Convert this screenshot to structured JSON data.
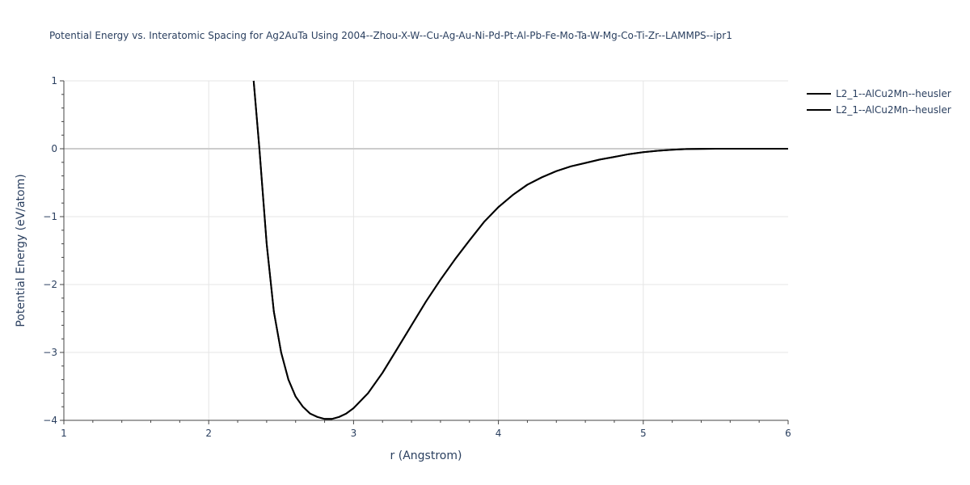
{
  "chart_data": {
    "type": "line",
    "title": "Potential Energy vs. Interatomic Spacing for Ag2AuTa Using 2004--Zhou-X-W--Cu-Ag-Au-Ni-Pd-Pt-Al-Pb-Fe-Mo-Ta-W-Mg-Co-Ti-Zr--LAMMPS--ipr1",
    "xlabel": "r (Angstrom)",
    "ylabel": "Potential Energy (eV/atom)",
    "xlim": [
      1,
      6
    ],
    "ylim": [
      -4,
      1
    ],
    "x_ticks": [
      1,
      2,
      3,
      4,
      5,
      6
    ],
    "x_tick_labels": [
      "1",
      "2",
      "3",
      "4",
      "5",
      "6"
    ],
    "y_ticks": [
      1,
      0,
      -1,
      -2,
      -3,
      -4
    ],
    "y_tick_labels": [
      "1",
      "0",
      "−1",
      "−2",
      "−3",
      "−4"
    ],
    "grid": true,
    "legend_position": "top-right",
    "series": [
      {
        "name": "L2_1--AlCu2Mn--heusler",
        "color": "#000000",
        "x": [
          2.31,
          2.35,
          2.4,
          2.45,
          2.5,
          2.55,
          2.6,
          2.65,
          2.7,
          2.75,
          2.8,
          2.85,
          2.9,
          2.95,
          3.0,
          3.1,
          3.2,
          3.3,
          3.4,
          3.5,
          3.6,
          3.7,
          3.8,
          3.9,
          4.0,
          4.1,
          4.2,
          4.3,
          4.4,
          4.5,
          4.6,
          4.7,
          4.8,
          4.9,
          5.0,
          5.1,
          5.2,
          5.3,
          5.5,
          5.8,
          6.0
        ],
        "y": [
          1.0,
          0.0,
          -1.4,
          -2.4,
          -3.0,
          -3.4,
          -3.65,
          -3.8,
          -3.9,
          -3.95,
          -3.98,
          -3.98,
          -3.95,
          -3.9,
          -3.82,
          -3.6,
          -3.3,
          -2.95,
          -2.6,
          -2.25,
          -1.93,
          -1.63,
          -1.35,
          -1.08,
          -0.86,
          -0.68,
          -0.53,
          -0.42,
          -0.33,
          -0.26,
          -0.21,
          -0.16,
          -0.12,
          -0.08,
          -0.05,
          -0.03,
          -0.015,
          -0.005,
          0.0,
          0.0,
          0.0
        ]
      },
      {
        "name": "L2_1--AlCu2Mn--heusler",
        "color": "#000000",
        "x": [
          2.31,
          2.35,
          2.4,
          2.45,
          2.5,
          2.55,
          2.6,
          2.65,
          2.7,
          2.75,
          2.8,
          2.85,
          2.9,
          2.95,
          3.0,
          3.1,
          3.2,
          3.3,
          3.4,
          3.5,
          3.6,
          3.7,
          3.8,
          3.9,
          4.0,
          4.1,
          4.2,
          4.3,
          4.4,
          4.5,
          4.6,
          4.7,
          4.8,
          4.9,
          5.0,
          5.1,
          5.2,
          5.3,
          5.5,
          5.8,
          6.0
        ],
        "y": [
          1.0,
          0.0,
          -1.4,
          -2.4,
          -3.0,
          -3.4,
          -3.65,
          -3.8,
          -3.9,
          -3.95,
          -3.98,
          -3.98,
          -3.95,
          -3.9,
          -3.82,
          -3.6,
          -3.3,
          -2.95,
          -2.6,
          -2.25,
          -1.93,
          -1.63,
          -1.35,
          -1.08,
          -0.86,
          -0.68,
          -0.53,
          -0.42,
          -0.33,
          -0.26,
          -0.21,
          -0.16,
          -0.12,
          -0.08,
          -0.05,
          -0.03,
          -0.015,
          -0.005,
          0.0,
          0.0,
          0.0
        ]
      }
    ]
  }
}
